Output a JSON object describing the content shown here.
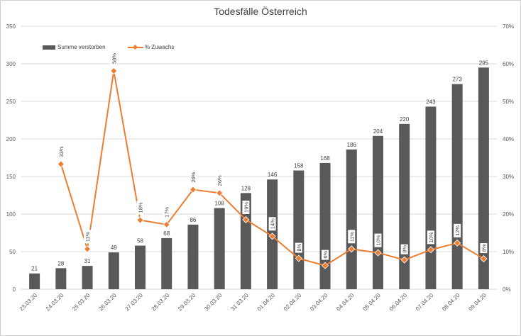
{
  "chart_data": {
    "type": "bar",
    "title": "Todesfälle Österreich",
    "categories": [
      "23.03.20",
      "24.03.20",
      "25.03.20",
      "26.03.20",
      "27.03.20",
      "28.03.20",
      "29.03.20",
      "30.03.20",
      "31.03.20",
      "01.04.20",
      "02.04.20",
      "03.04.20",
      "04.04.20",
      "05.04.20",
      "06.04.20",
      "07.04.20",
      "08.04.20",
      "09.04.20"
    ],
    "series": [
      {
        "name": "Summe verstorben",
        "type": "bar",
        "axis": "left",
        "color": "#595959",
        "values": [
          21,
          28,
          31,
          49,
          58,
          68,
          86,
          108,
          128,
          146,
          158,
          168,
          186,
          204,
          220,
          243,
          273,
          295
        ]
      },
      {
        "name": "% Zuwachs",
        "type": "line",
        "axis": "right",
        "color": "#ed7d31",
        "marker": "diamond",
        "values": [
          null,
          33.3,
          10.7,
          58.1,
          18.4,
          17.2,
          26.5,
          25.6,
          18.5,
          14.1,
          8.2,
          6.3,
          10.7,
          9.7,
          7.8,
          10.5,
          12.3,
          8.1
        ],
        "labels": [
          "",
          "33%",
          "11%",
          "58%",
          "18%",
          "17%",
          "26%",
          "26%",
          "19%",
          "14%",
          "8%",
          "6%",
          "11%",
          "10%",
          "8%",
          "10%",
          "12%",
          "8%"
        ]
      }
    ],
    "y_left": {
      "ylim": [
        0,
        350
      ],
      "ticks": [
        0,
        50,
        100,
        150,
        200,
        250,
        300,
        350
      ]
    },
    "y_right": {
      "ylim": [
        0,
        70
      ],
      "ticks": [
        "0%",
        "10%",
        "20%",
        "30%",
        "40%",
        "50%",
        "60%",
        "70%"
      ]
    },
    "grid": true,
    "legend_position": "top-left"
  }
}
